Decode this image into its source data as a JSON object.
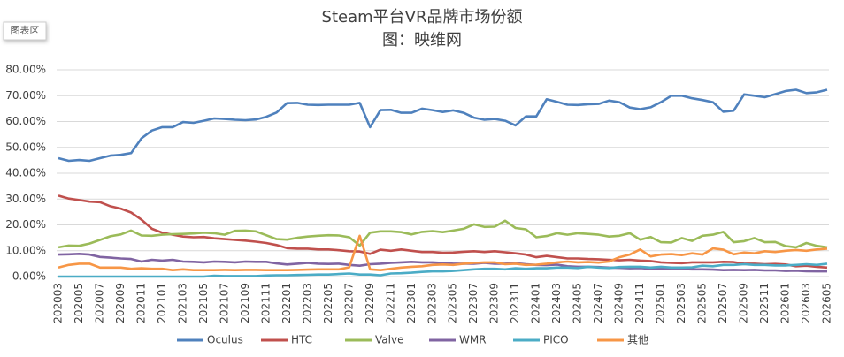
{
  "tooltip": "图表区",
  "chart_data": {
    "type": "line",
    "title": "Steam平台VR品牌市场份额",
    "subtitle": "图：映维网",
    "categories": [
      "202003",
      null,
      "202005",
      null,
      "202007",
      null,
      "202009",
      null,
      "202011",
      null,
      "202101",
      null,
      "202103",
      null,
      "202105",
      null,
      "202107",
      null,
      "202109",
      null,
      "202111",
      null,
      "202201",
      null,
      "202203",
      null,
      "202205",
      null,
      "202207",
      null,
      "202209",
      null,
      "202211",
      null,
      "202301",
      null,
      "202303",
      null,
      "202305",
      null,
      "202307",
      null,
      "202309",
      null,
      "202311",
      null,
      "202401",
      null,
      "202403",
      null,
      "202405",
      null,
      "202407",
      null,
      "202409",
      null,
      "202411",
      null,
      "202501",
      null,
      "202503",
      null,
      "202505",
      null,
      "202507",
      null,
      "202509",
      null,
      "202511",
      null,
      "202601",
      null,
      "202603",
      null,
      "202605"
    ],
    "ylim": [
      0,
      80
    ],
    "yticks": [
      {
        "value": 0,
        "label": "0.00%"
      },
      {
        "value": 10,
        "label": "10.00%"
      },
      {
        "value": 20,
        "label": "20.00%"
      },
      {
        "value": 30,
        "label": "30.00%"
      },
      {
        "value": 40,
        "label": "40.00%"
      },
      {
        "value": 50,
        "label": "50.00%"
      },
      {
        "value": 60,
        "label": "60.00%"
      },
      {
        "value": 70,
        "label": "70.00%"
      },
      {
        "value": 80,
        "label": "80.00%"
      }
    ],
    "grid": true,
    "legend": "bottom",
    "series": [
      {
        "name": "Oculus",
        "color": "#4f81bd",
        "values": [
          45.8,
          44.8,
          45.1,
          44.8,
          45.8,
          46.8,
          47.1,
          47.8,
          53.5,
          56.5,
          57.8,
          57.8,
          59.8,
          59.5,
          60.3,
          61.2,
          61.0,
          60.7,
          60.5,
          60.8,
          61.8,
          63.5,
          67.1,
          67.2,
          66.5,
          66.4,
          66.5,
          66.5,
          66.5,
          67.2,
          57.8,
          64.4,
          64.5,
          63.4,
          63.4,
          65.0,
          64.4,
          63.7,
          64.3,
          63.4,
          61.5,
          60.7,
          61.0,
          60.3,
          58.5,
          62.0,
          62.0,
          68.6,
          67.6,
          66.5,
          66.4,
          66.7,
          66.8,
          68.1,
          67.5,
          65.4,
          64.8,
          65.5,
          67.5,
          70.0,
          70.0,
          69.0,
          68.3,
          67.5,
          63.8,
          64.2,
          70.5,
          70.0,
          69.4,
          70.6,
          71.8,
          72.3,
          71.0,
          71.3,
          72.3
        ]
      },
      {
        "name": "HTC",
        "color": "#c0504d",
        "values": [
          31.3,
          30.2,
          29.6,
          29.0,
          28.8,
          27.2,
          26.3,
          24.8,
          22.0,
          18.5,
          17.0,
          16.2,
          15.5,
          15.2,
          15.3,
          14.8,
          14.5,
          14.2,
          13.9,
          13.5,
          13.0,
          12.2,
          11.0,
          10.8,
          10.8,
          10.5,
          10.5,
          10.2,
          9.8,
          9.7,
          8.8,
          10.4,
          10.0,
          10.5,
          10.0,
          9.5,
          9.5,
          9.2,
          9.3,
          9.6,
          9.8,
          9.5,
          9.8,
          9.4,
          9.0,
          8.5,
          7.5,
          8.0,
          7.5,
          7.0,
          7.0,
          6.8,
          6.7,
          6.5,
          6.3,
          6.5,
          6.2,
          6.0,
          5.5,
          5.3,
          5.2,
          5.5,
          5.5,
          5.5,
          5.7,
          5.6,
          5.0,
          5.0,
          4.8,
          4.9,
          4.7,
          4.0,
          4.2,
          3.8,
          3.5
        ]
      },
      {
        "name": "Valve",
        "color": "#9bbb59",
        "values": [
          11.3,
          12.0,
          11.9,
          12.8,
          14.2,
          15.6,
          16.3,
          17.8,
          15.9,
          15.8,
          16.2,
          16.4,
          16.5,
          16.7,
          17.0,
          16.8,
          16.2,
          17.7,
          17.8,
          17.5,
          16.0,
          14.5,
          14.3,
          15.0,
          15.5,
          15.8,
          16.0,
          15.9,
          15.2,
          12.0,
          17.0,
          17.5,
          17.5,
          17.2,
          16.3,
          17.3,
          17.6,
          17.2,
          17.8,
          18.5,
          20.2,
          19.2,
          19.3,
          21.6,
          18.8,
          18.3,
          15.2,
          15.7,
          16.8,
          16.2,
          16.8,
          16.5,
          16.2,
          15.5,
          15.8,
          16.8,
          14.3,
          15.3,
          13.3,
          13.2,
          14.9,
          13.8,
          15.8,
          16.2,
          17.3,
          13.3,
          13.7,
          14.9,
          13.3,
          13.4,
          11.8,
          11.3,
          13.0,
          11.9,
          11.3
        ]
      },
      {
        "name": "WMR",
        "color": "#8064a2",
        "values": [
          8.5,
          8.6,
          8.8,
          8.5,
          7.6,
          7.3,
          7.0,
          6.8,
          5.8,
          6.5,
          6.2,
          6.5,
          5.8,
          5.7,
          5.5,
          5.8,
          5.7,
          5.5,
          5.8,
          5.7,
          5.7,
          5.1,
          4.7,
          5.0,
          5.3,
          5.0,
          4.9,
          5.0,
          4.5,
          4.2,
          4.8,
          5.0,
          5.3,
          5.5,
          5.7,
          5.5,
          5.5,
          5.3,
          5.0,
          5.0,
          5.0,
          5.3,
          5.0,
          5.0,
          5.2,
          4.8,
          4.5,
          4.4,
          4.6,
          4.0,
          3.8,
          3.8,
          3.7,
          3.5,
          3.4,
          3.2,
          3.3,
          3.0,
          3.0,
          3.0,
          2.9,
          2.8,
          2.8,
          2.7,
          2.5,
          2.6,
          2.5,
          2.6,
          2.4,
          2.4,
          2.2,
          2.3,
          2.1,
          2.0,
          2.0
        ]
      },
      {
        "name": "PICO",
        "color": "#4bacc6",
        "values": [
          0,
          0,
          0,
          0,
          0,
          0,
          0,
          0,
          0,
          0,
          0,
          0,
          0,
          0,
          0,
          0.3,
          0.2,
          0.2,
          0.2,
          0.2,
          0.4,
          0.5,
          0.5,
          0.6,
          0.7,
          0.8,
          0.8,
          1.0,
          1.2,
          0.8,
          0.8,
          0.5,
          1.2,
          1.3,
          1.5,
          1.8,
          2.0,
          2.0,
          2.2,
          2.5,
          2.8,
          3.0,
          3.0,
          2.8,
          3.2,
          3.0,
          3.2,
          3.2,
          3.5,
          3.5,
          3.3,
          3.8,
          3.5,
          3.3,
          3.7,
          3.8,
          3.8,
          3.5,
          3.8,
          3.5,
          3.5,
          3.6,
          4.2,
          4.0,
          4.5,
          4.5,
          4.8,
          4.5,
          4.5,
          4.3,
          4.3,
          4.5,
          4.8,
          4.5,
          5.0
        ]
      },
      {
        "name": "其他",
        "color": "#f79646",
        "values": [
          3.5,
          4.5,
          5.0,
          5.0,
          3.5,
          3.5,
          3.5,
          3.0,
          3.2,
          3.0,
          3.0,
          2.5,
          2.8,
          2.5,
          2.5,
          2.5,
          2.6,
          2.5,
          2.6,
          2.6,
          2.5,
          2.5,
          2.5,
          2.6,
          2.7,
          2.8,
          2.8,
          2.8,
          3.6,
          15.8,
          2.8,
          2.5,
          3.0,
          3.5,
          3.8,
          4.0,
          4.5,
          4.7,
          4.5,
          5.0,
          5.3,
          5.5,
          5.5,
          4.8,
          5.0,
          4.5,
          4.6,
          5.0,
          5.5,
          5.8,
          5.5,
          5.6,
          5.4,
          5.8,
          7.5,
          8.5,
          10.5,
          7.8,
          8.5,
          8.7,
          8.3,
          9.0,
          8.5,
          10.9,
          10.4,
          8.6,
          9.3,
          9.0,
          9.8,
          9.5,
          10.0,
          10.3,
          10.0,
          10.5,
          10.8
        ]
      }
    ]
  }
}
